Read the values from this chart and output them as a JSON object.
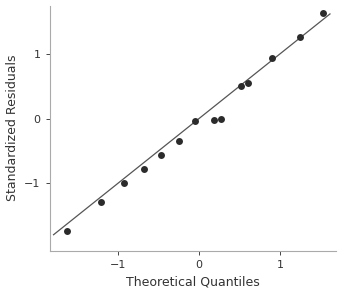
{
  "title": "",
  "xlabel": "Theoretical Quantiles",
  "ylabel": "Standardized Residuals",
  "points_x": [
    -1.63,
    -1.21,
    -0.93,
    -0.68,
    -0.47,
    -0.25,
    -0.05,
    0.18,
    0.27,
    0.52,
    0.6,
    0.9,
    1.25,
    1.53
  ],
  "points_y": [
    -1.75,
    -1.3,
    -1.0,
    -0.78,
    -0.57,
    -0.35,
    -0.04,
    -0.02,
    0.0,
    0.5,
    0.55,
    0.93,
    1.27,
    1.63
  ],
  "line_x": [
    -1.8,
    1.62
  ],
  "line_y": [
    -1.8,
    1.62
  ],
  "xlim": [
    -1.85,
    1.7
  ],
  "ylim": [
    -2.05,
    1.75
  ],
  "xticks": [
    -1,
    0,
    1
  ],
  "yticks": [
    -1,
    0,
    1
  ],
  "marker_color": "#2b2b2b",
  "marker_size": 5,
  "line_color": "#555555",
  "line_width": 0.9,
  "xlabel_fontsize": 9,
  "ylabel_fontsize": 9,
  "tick_fontsize": 8,
  "spine_color": "#aaaaaa",
  "background_color": "#ffffff"
}
